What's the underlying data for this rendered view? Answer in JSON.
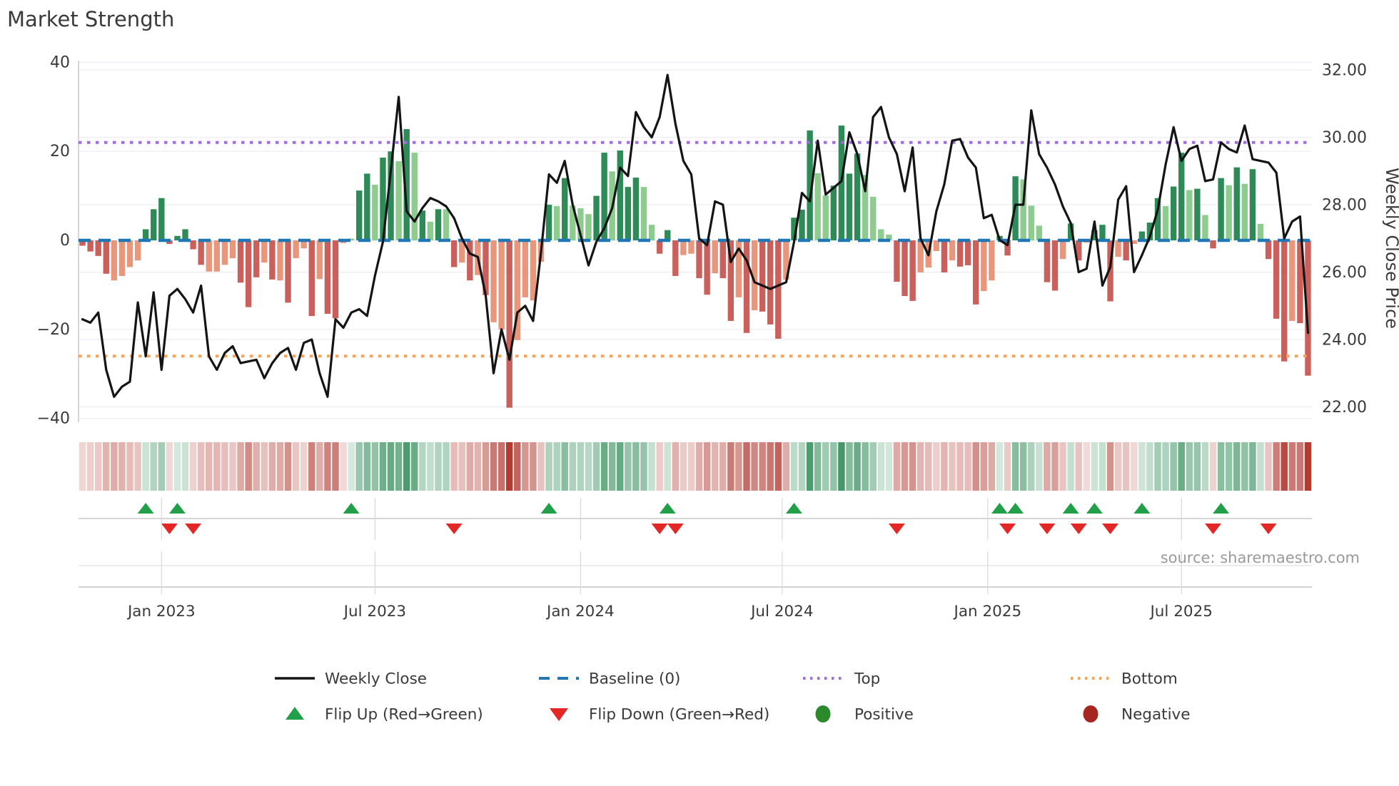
{
  "title": "Market Strength",
  "source": "source: sharemaestro.com",
  "axes": {
    "left_ticks": [
      "40",
      "20",
      "0",
      "−20",
      "−40"
    ],
    "left_tick_values": [
      40,
      20,
      0,
      -20,
      -40
    ],
    "right_ticks": [
      "32.00",
      "30.00",
      "28.00",
      "26.00",
      "24.00",
      "22.00"
    ],
    "right_tick_values": [
      32,
      30,
      28,
      26,
      24,
      22
    ],
    "right_label": "Weekly Close Price",
    "x_ticks": [
      {
        "label": "Jan 2023",
        "week": 10
      },
      {
        "label": "Jul 2023",
        "week": 37
      },
      {
        "label": "Jan 2024",
        "week": 63
      },
      {
        "label": "Jul 2024",
        "week": 88.5
      },
      {
        "label": "Jan 2025",
        "week": 114.5
      },
      {
        "label": "Jul 2025",
        "week": 139
      }
    ]
  },
  "colors": {
    "bar_dark_green": "#2e8b57",
    "bar_light_green": "#8ecb8e",
    "bar_dark_red": "#c9605b",
    "bar_salmon": "#e8967c",
    "line_black": "#141414",
    "baseline_blue": "#2077b4",
    "top_purple": "#a06cdd",
    "bottom_orange": "#f2a55f",
    "flip_up_green": "#22a049",
    "flip_down_red": "#e32726",
    "positive_green": "#2b8a2b",
    "negative_red": "#a62622",
    "grid": "#ececf2",
    "spine": "#c9c9d0",
    "text_dark": "#3a3a3a",
    "text_gray": "#9a9a9a"
  },
  "legend": {
    "rows": [
      [
        {
          "swatch": "line",
          "color": "#141414",
          "label": "Weekly Close"
        },
        {
          "swatch": "dash",
          "color": "#2077b4",
          "label": "Baseline (0)"
        },
        {
          "swatch": "dots",
          "color": "#a06cdd",
          "label": "Top"
        },
        {
          "swatch": "dots",
          "color": "#f2a55f",
          "label": "Bottom"
        }
      ],
      [
        {
          "swatch": "tri-up",
          "color": "#22a049",
          "label": "Flip Up (Red→Green)"
        },
        {
          "swatch": "tri-down",
          "color": "#e32726",
          "label": "Flip Down (Green→Red)"
        },
        {
          "swatch": "circle",
          "color": "#2b8a2b",
          "label": "Positive"
        },
        {
          "swatch": "circle",
          "color": "#a62622",
          "label": "Negative"
        }
      ]
    ]
  },
  "chart_data": {
    "type": "bar+line+heatmap",
    "title": "Market Strength",
    "ylabel_right": "Weekly Close Price",
    "left_ylim": [
      -40,
      40
    ],
    "right_ylim": [
      22,
      32
    ],
    "top_line": 22,
    "bottom_line": -26,
    "baseline": 0,
    "weeks": 156,
    "strength": [
      -1.2,
      -2.5,
      -3.5,
      -7.5,
      -9,
      -8,
      -6,
      -4.5,
      2.5,
      7,
      9.5,
      -0.8,
      1,
      2.5,
      -2,
      -5.5,
      -7,
      -7,
      -5.5,
      -4,
      -9.5,
      -15,
      -8.3,
      -5,
      -8.8,
      -9,
      -14,
      -4,
      -1.8,
      -17,
      -8.7,
      -16.5,
      -17.5,
      -0.6,
      0.4,
      11.2,
      15,
      12.5,
      18.6,
      20,
      17.8,
      25,
      19.7,
      6.7,
      4.2,
      7,
      7,
      -6,
      -5,
      -9,
      -7.8,
      -12.3,
      -18.4,
      -20,
      -37.6,
      -22.4,
      -12.8,
      -13.5,
      -4.8,
      8,
      7.7,
      14,
      7.8,
      7.2,
      5.9,
      10,
      19.7,
      15.5,
      20.2,
      12,
      14.1,
      12,
      3.5,
      -3,
      2.3,
      -8,
      -3.3,
      -3,
      -8.5,
      -12.2,
      -7.4,
      -8.5,
      -18.1,
      -12.8,
      -20.8,
      -15.7,
      -16,
      -18.9,
      -22.1,
      -8.8,
      5.1,
      6.9,
      24.7,
      15.1,
      10.1,
      12.3,
      25.8,
      15,
      19.5,
      14.7,
      9.8,
      2.5,
      1.3,
      -9.3,
      -12.5,
      -13.6,
      -7.2,
      -6.1,
      -2.4,
      -7.2,
      -4.5,
      -5.9,
      -5.6,
      -14.4,
      -11.4,
      -9,
      1,
      -3.4,
      14.4,
      13.7,
      7.8,
      3.3,
      -9.4,
      -11.3,
      -4.2,
      3.8,
      -4.5,
      -0.5,
      2.3,
      3.5,
      -13.7,
      -3.7,
      -4.5,
      -0.8,
      2,
      4,
      9.5,
      7.7,
      12.1,
      19.7,
      11.3,
      11.6,
      5.7,
      -1.8,
      14,
      12.4,
      16.4,
      12.7,
      16,
      3.7,
      -4.2,
      -17.6,
      -27.2,
      -18.1,
      -18.6,
      -30.4
    ],
    "strength_palette": [
      "dr",
      "dr",
      "dr",
      "dr",
      "sa",
      "sa",
      "sa",
      "sa",
      "dg",
      "dg",
      "dg",
      "dr",
      "dg",
      "dg",
      "dr",
      "dr",
      "sa",
      "sa",
      "sa",
      "sa",
      "dr",
      "dr",
      "dr",
      "sa",
      "dr",
      "sa",
      "dr",
      "sa",
      "sa",
      "dr",
      "sa",
      "dr",
      "dr",
      "sa",
      "lg",
      "dg",
      "dg",
      "lg",
      "dg",
      "dg",
      "lg",
      "dg",
      "lg",
      "dg",
      "lg",
      "dg",
      "lg",
      "dr",
      "sa",
      "dr",
      "sa",
      "dr",
      "sa",
      "sa",
      "dr",
      "sa",
      "sa",
      "sa",
      "sa",
      "dg",
      "lg",
      "dg",
      "lg",
      "lg",
      "lg",
      "dg",
      "dg",
      "lg",
      "dg",
      "dg",
      "dg",
      "lg",
      "lg",
      "dr",
      "dg",
      "dr",
      "sa",
      "sa",
      "dr",
      "dr",
      "sa",
      "dr",
      "dr",
      "sa",
      "dr",
      "sa",
      "dr",
      "dr",
      "dr",
      "sa",
      "dg",
      "dg",
      "dg",
      "lg",
      "lg",
      "dg",
      "dg",
      "dg",
      "dg",
      "lg",
      "lg",
      "lg",
      "lg",
      "dr",
      "dr",
      "dr",
      "sa",
      "sa",
      "sa",
      "dr",
      "sa",
      "dr",
      "dr",
      "dr",
      "sa",
      "sa",
      "dg",
      "dr",
      "dg",
      "lg",
      "lg",
      "lg",
      "dr",
      "dr",
      "sa",
      "dg",
      "dr",
      "sa",
      "dg",
      "dg",
      "dr",
      "sa",
      "dr",
      "sa",
      "dg",
      "dg",
      "dg",
      "lg",
      "dg",
      "dg",
      "lg",
      "dg",
      "lg",
      "dr",
      "dg",
      "lg",
      "dg",
      "lg",
      "dg",
      "lg",
      "dr",
      "dr",
      "dr",
      "sa",
      "dr",
      "dr"
    ],
    "weekly_close": [
      24.6,
      24.5,
      24.8,
      23.1,
      22.3,
      22.6,
      22.75,
      25.1,
      23.5,
      25.4,
      23.1,
      25.3,
      25.5,
      25.2,
      24.8,
      25.6,
      23.5,
      23.1,
      23.6,
      23.8,
      23.3,
      23.35,
      23.4,
      22.85,
      23.3,
      23.6,
      23.75,
      23.1,
      23.9,
      24.0,
      23.0,
      22.3,
      24.6,
      24.35,
      24.8,
      24.9,
      24.7,
      25.9,
      26.9,
      29.0,
      31.2,
      27.8,
      27.5,
      27.9,
      28.2,
      28.1,
      27.95,
      27.6,
      27.0,
      26.55,
      26.45,
      25.3,
      23.0,
      24.3,
      23.4,
      24.8,
      25.0,
      24.55,
      26.6,
      28.9,
      28.65,
      29.3,
      28.0,
      27.1,
      26.2,
      26.9,
      27.3,
      27.9,
      29.1,
      28.85,
      30.75,
      30.3,
      30.0,
      30.6,
      31.85,
      30.4,
      29.3,
      28.9,
      27.0,
      26.8,
      28.1,
      28.0,
      26.3,
      26.7,
      26.35,
      25.7,
      25.6,
      25.5,
      25.6,
      25.7,
      26.9,
      28.35,
      28.1,
      29.9,
      28.3,
      28.5,
      28.7,
      30.15,
      29.5,
      28.4,
      30.6,
      30.9,
      30.0,
      29.5,
      28.4,
      29.7,
      27.0,
      26.5,
      27.8,
      28.6,
      29.9,
      29.95,
      29.4,
      29.1,
      27.6,
      27.7,
      26.95,
      26.8,
      28.0,
      28.0,
      30.8,
      29.5,
      29.1,
      28.6,
      27.95,
      27.45,
      26.0,
      26.1,
      27.5,
      25.6,
      26.15,
      28.15,
      28.55,
      26.0,
      26.5,
      27.05,
      27.85,
      29.2,
      30.3,
      29.3,
      29.65,
      29.75,
      28.7,
      28.75,
      29.85,
      29.65,
      29.55,
      30.35,
      29.35,
      29.3,
      29.25,
      28.95,
      27.0,
      27.5,
      27.65,
      24.2
    ],
    "flip_up_weeks": [
      8,
      12,
      34,
      59,
      74,
      90,
      116,
      118,
      125,
      128,
      134,
      144
    ],
    "flip_down_weeks": [
      11,
      14,
      47,
      73,
      75,
      103,
      117,
      122,
      126,
      130,
      143,
      150
    ]
  }
}
